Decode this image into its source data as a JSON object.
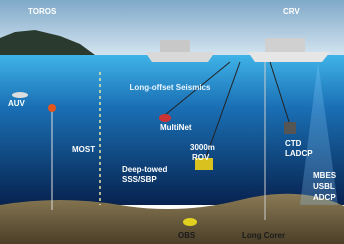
{
  "labels": {
    "toros": "TOROS",
    "crv": "CRV",
    "auv": "AUV",
    "seismics": "Long-offset Seismics",
    "multinet": "MultiNet",
    "ctd": [
      "CTD",
      "LADCP"
    ],
    "most": "MOST",
    "deep_towed": [
      "Deep-towed",
      "SSS/SBP"
    ],
    "rov": [
      "3000m",
      "ROV"
    ],
    "mbes": [
      "MBES",
      "USBL",
      "ADCP"
    ],
    "obs": "OBS",
    "long_corer": "Long Corer"
  }
}
